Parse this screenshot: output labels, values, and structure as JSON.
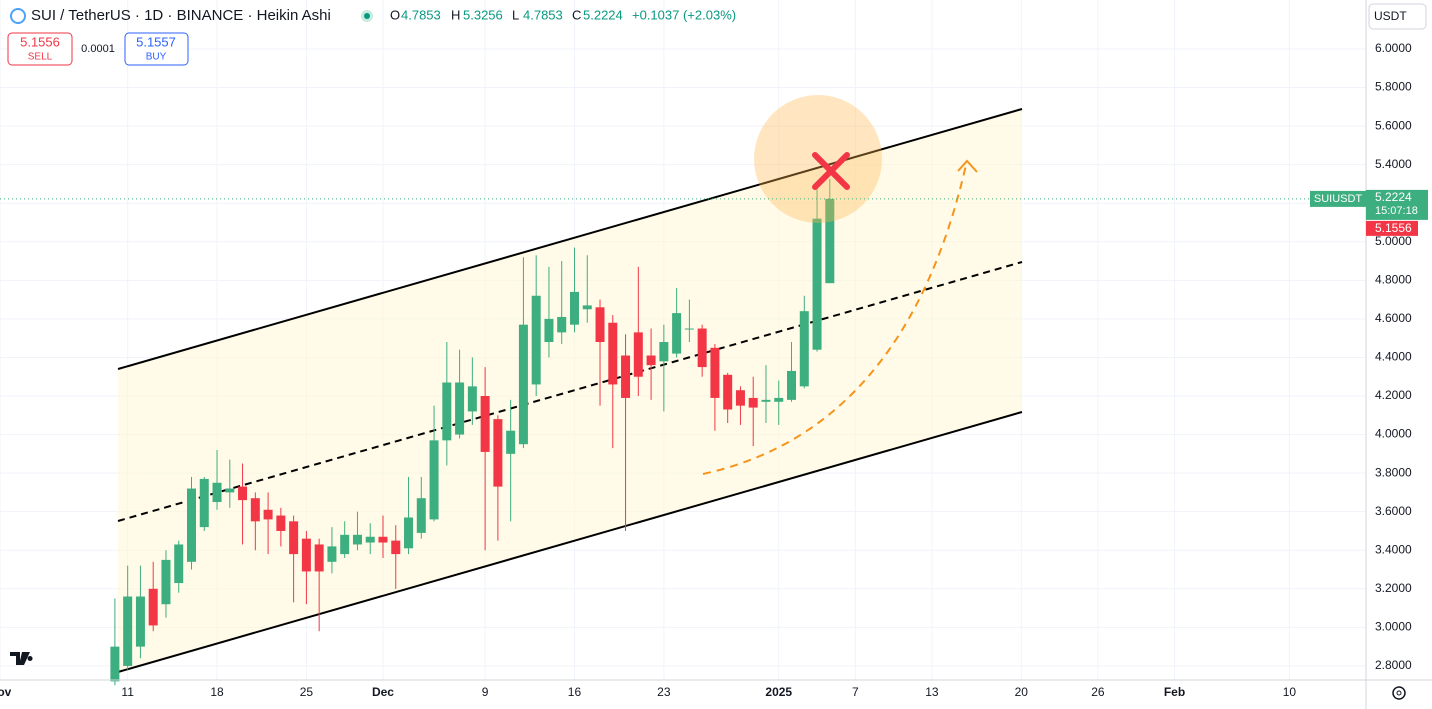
{
  "header": {
    "symbol": "SUI / TetherUS · 1D · BINANCE · Heikin Ashi",
    "o_label": "O",
    "open": 4.7853,
    "h_label": "H",
    "high": 5.3256,
    "l_label": "L",
    "low": 4.7853,
    "c_label": "C",
    "close": 5.2224,
    "change": "+0.1037 (+2.03%)"
  },
  "trade": {
    "sell_price": 5.1556,
    "sell_label": "SELL",
    "spread": 0.0001,
    "buy_price": 5.1557,
    "buy_label": "BUY"
  },
  "currency": "USDT",
  "price_tag": {
    "symbol": "SUIUSDT",
    "price": 5.2224,
    "countdown": "15:07:18",
    "bid": 5.1556
  },
  "chart_data": {
    "type": "candlestick",
    "up_color": "#3dae7f",
    "down_color": "#f23645",
    "grid": true,
    "xlim": [
      "2024-11-01",
      "2025-02-16"
    ],
    "ylim": [
      2.727,
      6.254
    ],
    "xticks": [
      {
        "value": "2024-11-01",
        "label": "Nov"
      },
      {
        "value": "2024-11-11",
        "label": "11"
      },
      {
        "value": "2024-11-18",
        "label": "18"
      },
      {
        "value": "2024-11-25",
        "label": "25"
      },
      {
        "value": "2024-12-01",
        "label": "Dec"
      },
      {
        "value": "2024-12-09",
        "label": "9"
      },
      {
        "value": "2024-12-16",
        "label": "16"
      },
      {
        "value": "2024-12-23",
        "label": "23"
      },
      {
        "value": "2025-01-01",
        "label": "2025"
      },
      {
        "value": "2025-01-07",
        "label": "7"
      },
      {
        "value": "2025-01-13",
        "label": "13"
      },
      {
        "value": "2025-01-20",
        "label": "20"
      },
      {
        "value": "2025-01-26",
        "label": "26"
      },
      {
        "value": "2025-02-01",
        "label": "Feb"
      },
      {
        "value": "2025-02-10",
        "label": "10"
      }
    ],
    "yticks": [
      {
        "value": 2.8,
        "label": "2.8000"
      },
      {
        "value": 3,
        "label": "3.0000"
      },
      {
        "value": 3.2,
        "label": "3.2000"
      },
      {
        "value": 3.4,
        "label": "3.4000"
      },
      {
        "value": 3.6,
        "label": "3.6000"
      },
      {
        "value": 3.8,
        "label": "3.8000"
      },
      {
        "value": 4,
        "label": "4.0000"
      },
      {
        "value": 4.2,
        "label": "4.2000"
      },
      {
        "value": 4.4,
        "label": "4.4000"
      },
      {
        "value": 4.6,
        "label": "4.6000"
      },
      {
        "value": 4.8,
        "label": "4.8000"
      },
      {
        "value": 5,
        "label": "5.0000"
      },
      {
        "value": 5.2,
        "label": "5.2000"
      },
      {
        "value": 5.4,
        "label": "5.4000"
      },
      {
        "value": 5.6,
        "label": "5.6000"
      },
      {
        "value": 5.8,
        "label": "5.8000"
      },
      {
        "value": 6,
        "label": "6.0000"
      }
    ],
    "x": [
      "2024-11-10",
      "2024-11-11",
      "2024-11-12",
      "2024-11-13",
      "2024-11-14",
      "2024-11-15",
      "2024-11-16",
      "2024-11-17",
      "2024-11-18",
      "2024-11-19",
      "2024-11-20",
      "2024-11-21",
      "2024-11-22",
      "2024-11-23",
      "2024-11-24",
      "2024-11-25",
      "2024-11-26",
      "2024-11-27",
      "2024-11-28",
      "2024-11-29",
      "2024-11-30",
      "2024-12-01",
      "2024-12-02",
      "2024-12-03",
      "2024-12-04",
      "2024-12-05",
      "2024-12-06",
      "2024-12-07",
      "2024-12-08",
      "2024-12-09",
      "2024-12-10",
      "2024-12-11",
      "2024-12-12",
      "2024-12-13",
      "2024-12-14",
      "2024-12-15",
      "2024-12-16",
      "2024-12-17",
      "2024-12-18",
      "2024-12-19",
      "2024-12-20",
      "2024-12-21",
      "2024-12-22",
      "2024-12-23",
      "2024-12-24",
      "2024-12-25",
      "2024-12-26",
      "2024-12-27",
      "2024-12-28",
      "2024-12-29",
      "2024-12-30",
      "2024-12-31",
      "2025-01-01",
      "2025-01-02",
      "2025-01-03",
      "2025-01-04",
      "2025-01-05"
    ],
    "open": [
      2.72,
      2.8,
      2.9,
      3.2,
      3.12,
      3.23,
      3.34,
      3.52,
      3.65,
      3.7,
      3.73,
      3.67,
      3.61,
      3.58,
      3.55,
      3.46,
      3.43,
      3.34,
      3.38,
      3.43,
      3.44,
      3.47,
      3.45,
      3.41,
      3.49,
      3.56,
      3.97,
      4.0,
      4.12,
      4.2,
      4.08,
      3.9,
      3.95,
      4.26,
      4.48,
      4.53,
      4.57,
      4.65,
      4.66,
      4.58,
      4.41,
      4.53,
      4.41,
      4.38,
      4.42,
      4.55,
      4.55,
      4.45,
      4.31,
      4.23,
      4.19,
      4.17,
      4.17,
      4.18,
      4.25,
      4.44,
      4.7853
    ],
    "high": [
      3.15,
      3.32,
      3.32,
      3.34,
      3.4,
      3.45,
      3.78,
      3.78,
      3.92,
      3.87,
      3.85,
      3.7,
      3.7,
      3.62,
      3.58,
      3.5,
      3.46,
      3.52,
      3.55,
      3.6,
      3.54,
      3.58,
      3.53,
      3.78,
      3.78,
      4.15,
      4.48,
      4.44,
      4.4,
      4.35,
      4.1,
      4.18,
      4.92,
      4.93,
      4.87,
      4.9,
      4.97,
      4.93,
      4.7,
      4.62,
      4.52,
      4.87,
      4.55,
      4.57,
      4.76,
      4.7,
      4.57,
      4.47,
      4.32,
      4.25,
      4.3,
      4.36,
      4.28,
      4.48,
      4.72,
      5.3,
      5.3256
    ],
    "low": [
      2.7,
      2.78,
      2.84,
      2.98,
      3.05,
      3.18,
      3.3,
      3.5,
      3.61,
      3.62,
      3.43,
      3.4,
      3.38,
      3.42,
      3.13,
      3.12,
      2.98,
      3.28,
      3.36,
      3.4,
      3.38,
      3.36,
      3.2,
      3.38,
      3.46,
      3.55,
      3.84,
      3.98,
      4.05,
      3.4,
      3.45,
      3.55,
      3.93,
      4.2,
      4.4,
      4.47,
      4.53,
      4.58,
      4.15,
      3.93,
      3.5,
      4.2,
      4.18,
      4.12,
      4.4,
      4.48,
      4.3,
      4.02,
      4.06,
      4.05,
      3.94,
      4.06,
      4.05,
      4.17,
      4.24,
      4.43,
      4.7853
    ],
    "close": [
      2.9,
      3.16,
      3.16,
      3.01,
      3.35,
      3.43,
      3.72,
      3.77,
      3.75,
      3.72,
      3.66,
      3.55,
      3.56,
      3.5,
      3.38,
      3.29,
      3.29,
      3.42,
      3.48,
      3.48,
      3.47,
      3.44,
      3.38,
      3.57,
      3.67,
      3.97,
      4.27,
      4.27,
      4.25,
      3.91,
      3.73,
      4.02,
      4.57,
      4.72,
      4.6,
      4.61,
      4.74,
      4.67,
      4.48,
      4.26,
      4.19,
      4.3,
      4.36,
      4.48,
      4.63,
      4.55,
      4.35,
      4.19,
      4.13,
      4.15,
      4.14,
      4.18,
      4.19,
      4.33,
      4.64,
      5.12,
      5.2224
    ]
  }
}
